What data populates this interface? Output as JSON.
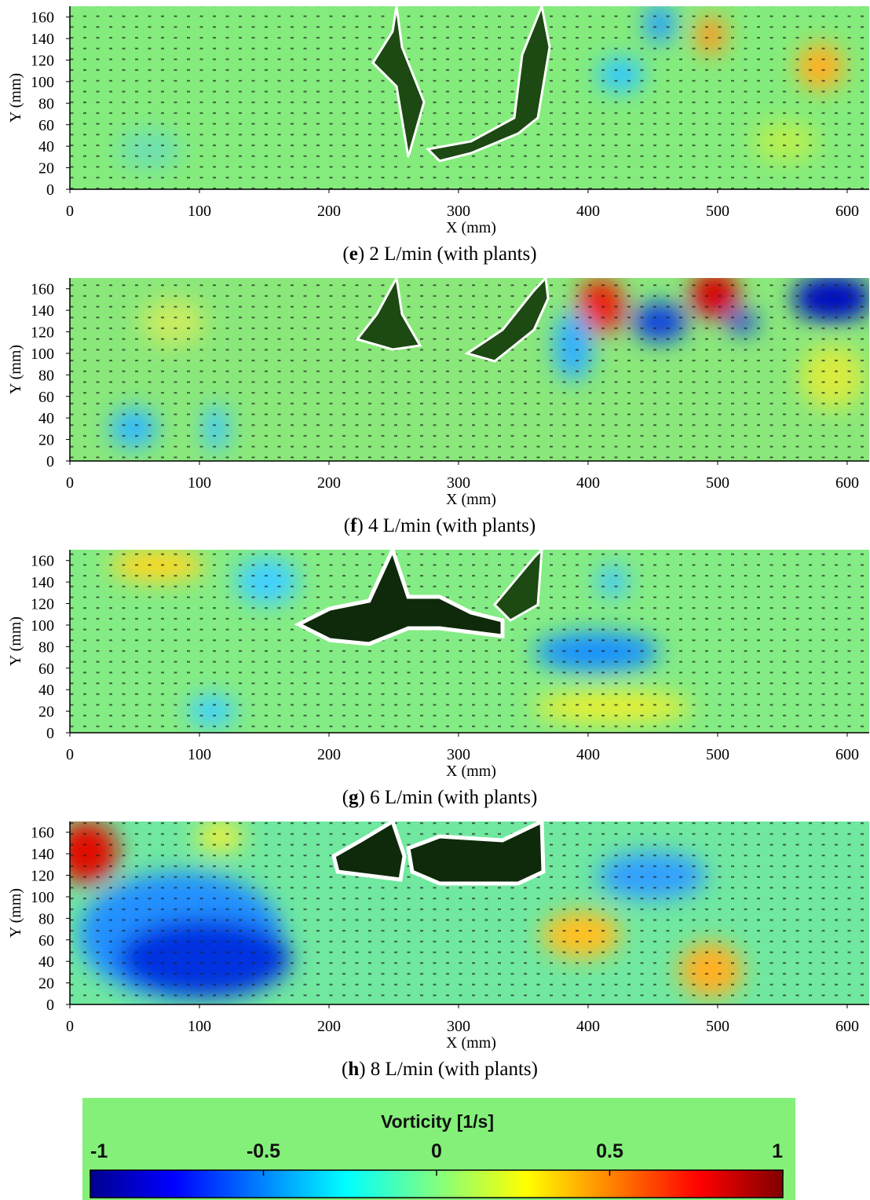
{
  "chart_data": [
    {
      "type": "heatmap",
      "caption_parts": [
        "(",
        "e",
        ") 2 L/min (with plants)"
      ],
      "xlabel": "X (mm)",
      "ylabel": "Y (mm)",
      "xlim": [
        0,
        617
      ],
      "ylim": [
        0,
        170
      ],
      "xticks": [
        0,
        100,
        200,
        300,
        400,
        500,
        600
      ],
      "yticks": [
        0,
        20,
        40,
        60,
        80,
        100,
        120,
        140,
        160
      ]
    },
    {
      "type": "heatmap",
      "caption_parts": [
        "(",
        "f",
        ") 4 L/min (with plants)"
      ],
      "xlabel": "X (mm)",
      "ylabel": "Y (mm)",
      "xlim": [
        0,
        617
      ],
      "ylim": [
        0,
        170
      ],
      "xticks": [
        0,
        100,
        200,
        300,
        400,
        500,
        600
      ],
      "yticks": [
        0,
        20,
        40,
        60,
        80,
        100,
        120,
        140,
        160
      ]
    },
    {
      "type": "heatmap",
      "caption_parts": [
        "(",
        "g",
        ") 6 L/min (with plants)"
      ],
      "xlabel": "X (mm)",
      "ylabel": "Y (mm)",
      "xlim": [
        0,
        617
      ],
      "ylim": [
        0,
        170
      ],
      "xticks": [
        0,
        100,
        200,
        300,
        400,
        500,
        600
      ],
      "yticks": [
        0,
        20,
        40,
        60,
        80,
        100,
        120,
        140,
        160
      ]
    },
    {
      "type": "heatmap",
      "caption_parts": [
        "(",
        "h",
        ") 8 L/min (with plants)"
      ],
      "xlabel": "X (mm)",
      "ylabel": "Y (mm)",
      "xlim": [
        0,
        617
      ],
      "ylim": [
        0,
        170
      ],
      "xticks": [
        0,
        100,
        200,
        300,
        400,
        500,
        600
      ],
      "yticks": [
        0,
        20,
        40,
        60,
        80,
        100,
        120,
        140,
        160
      ]
    },
    {
      "type": "colorbar",
      "title": "Vorticity [1/s]",
      "xlim": [
        -1,
        1
      ],
      "xticks": [
        -1,
        -0.5,
        0,
        0.5,
        1
      ]
    }
  ]
}
